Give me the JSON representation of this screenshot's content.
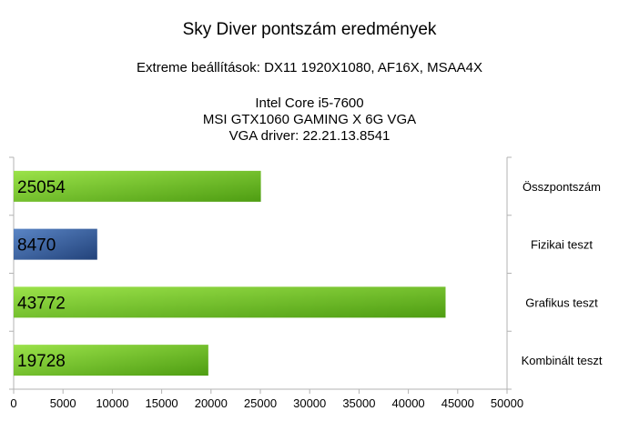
{
  "chart_data": {
    "type": "bar",
    "orientation": "horizontal",
    "title": "Sky Diver pontszám eredmények",
    "subtitle": "Extreme beállítások: DX11 1920X1080, AF16X, MSAA4X",
    "info_lines": [
      "Intel Core i5-7600",
      "MSI GTX1060 GAMING X 6G VGA",
      "VGA driver: 22.21.13.8541"
    ],
    "categories": [
      "Összpontszám",
      "Fizikai teszt",
      "Grafikus teszt",
      "Kombinált teszt"
    ],
    "values": [
      25054,
      8470,
      43772,
      19728
    ],
    "bar_colors": [
      "#7ac72b",
      "#3d6aa8",
      "#7ac72b",
      "#7ac72b"
    ],
    "xlim": [
      0,
      50000
    ],
    "xticks": [
      0,
      5000,
      10000,
      15000,
      20000,
      25000,
      30000,
      35000,
      40000,
      45000,
      50000
    ],
    "category_labels_side": "right",
    "data_labels": "inside-left",
    "grid": false
  }
}
